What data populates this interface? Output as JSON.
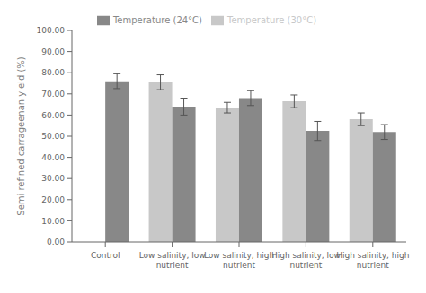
{
  "chart_data": {
    "type": "bar",
    "categories": [
      "Control",
      "Low salinity, low\nnutrient",
      "Low salinity, high\nnutrient",
      "High salinity, low\nnutrient",
      "High salinity, high\nnutrient"
    ],
    "series": [
      {
        "name": "Temperature (30°C)",
        "color": "#c8c8c8",
        "values": [
          null,
          75.5,
          63.5,
          66.5,
          58.0
        ],
        "errors": [
          null,
          3.5,
          2.5,
          3.0,
          3.0
        ]
      },
      {
        "name": "Temperature (24°C)",
        "color": "#888888",
        "values": [
          76.0,
          64.0,
          68.0,
          52.5,
          52.0
        ],
        "errors": [
          3.5,
          4.0,
          3.5,
          4.5,
          3.5
        ]
      }
    ],
    "ylabel": "Semi refined carrageenan yield (%)",
    "ylim": [
      0,
      100
    ],
    "yticks": [
      {
        "value": 0,
        "label": "0.00"
      },
      {
        "value": 10,
        "label": "10.00"
      },
      {
        "value": 20,
        "label": "20.00"
      },
      {
        "value": 30,
        "label": "30.00"
      },
      {
        "value": 40,
        "label": "40.00"
      },
      {
        "value": 50,
        "label": "50.00"
      },
      {
        "value": 60,
        "label": "60.00"
      },
      {
        "value": 70,
        "label": "70.00"
      },
      {
        "value": 80,
        "label": "80.00"
      },
      {
        "value": 90,
        "label": "90.00"
      },
      {
        "value": 100,
        "label": "100.00"
      }
    ],
    "legend": "top",
    "grid": false
  }
}
